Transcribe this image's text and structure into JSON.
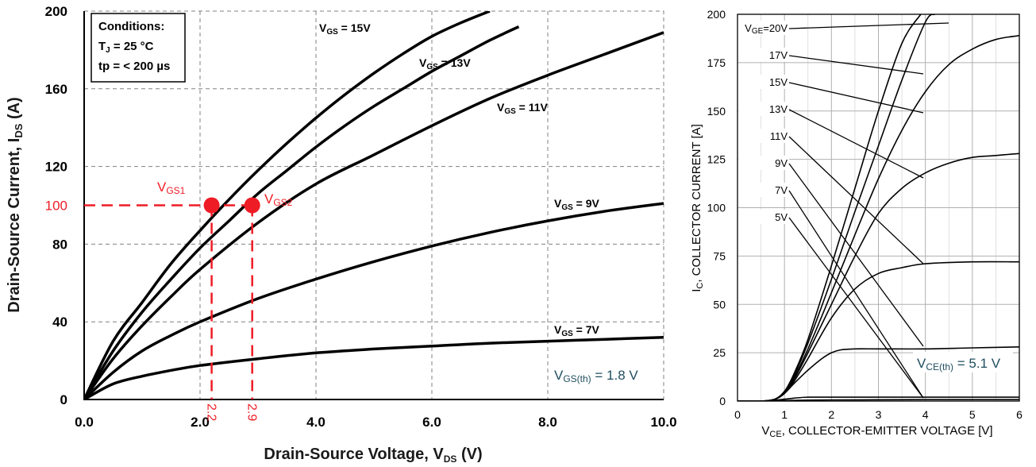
{
  "chart_data": [
    {
      "type": "line",
      "title": "",
      "xlabel_main": "Drain-Source Voltage, V",
      "xlabel_sub": "DS",
      "xlabel_unit": " (V)",
      "ylabel_main": "Drain-Source Current, I",
      "ylabel_sub": "DS",
      "ylabel_unit": " (A)",
      "xlim": [
        0,
        10
      ],
      "ylim": [
        0,
        200
      ],
      "x_ticks": [
        0,
        2,
        4,
        6,
        8,
        10
      ],
      "x_tick_labels": [
        "0.0",
        "2.0",
        "4.0",
        "6.0",
        "8.0",
        "10.0"
      ],
      "y_ticks": [
        0,
        40,
        80,
        120,
        160,
        200
      ],
      "y_tick_labels": [
        "0",
        "40",
        "80",
        "120",
        "160",
        "200"
      ],
      "conditions": {
        "title": "Conditions:",
        "line1_main": "T",
        "line1_sub": "J",
        "line1_rest": " = 25 °C",
        "line2": "tp = < 200 µs"
      },
      "series": [
        {
          "name": "VGS = 15V",
          "label_main": "V",
          "label_sub": "GS",
          "label_rest": " = 15V",
          "x": [
            0,
            0.5,
            1,
            1.5,
            2,
            2.5,
            3,
            3.5,
            4,
            4.5,
            5,
            5.5,
            6,
            6.5,
            7
          ],
          "y": [
            0,
            30,
            50,
            70,
            87,
            103,
            118,
            132,
            145,
            157,
            168,
            178,
            187,
            194,
            200
          ]
        },
        {
          "name": "VGS = 13V",
          "label_main": "V",
          "label_sub": "GS",
          "label_rest": " = 13V",
          "x": [
            0,
            0.5,
            1,
            1.5,
            2,
            2.5,
            3,
            3.5,
            4,
            4.5,
            5,
            5.5,
            6,
            6.5,
            7,
            7.5
          ],
          "y": [
            0,
            25,
            45,
            62,
            78,
            92,
            106,
            118,
            130,
            141,
            151,
            160,
            169,
            177,
            185,
            192
          ]
        },
        {
          "name": "VGS = 11V",
          "label_main": "V",
          "label_sub": "GS",
          "label_rest": " = 11V",
          "x": [
            0,
            0.5,
            1,
            1.5,
            2,
            3,
            4,
            5,
            6,
            7,
            8,
            9,
            10
          ],
          "y": [
            0,
            21,
            38,
            53,
            67,
            91,
            111,
            126,
            141,
            155,
            167,
            178,
            189
          ]
        },
        {
          "name": "VGS = 9V",
          "label_main": "V",
          "label_sub": "GS",
          "label_rest": " = 9V",
          "x": [
            0,
            0.5,
            1,
            1.5,
            2,
            3,
            4,
            5,
            6,
            7,
            8,
            9,
            10
          ],
          "y": [
            0,
            14,
            25,
            33,
            40,
            52,
            62,
            71,
            79,
            86,
            92,
            97,
            101
          ]
        },
        {
          "name": "VGS = 7V",
          "label_main": "V",
          "label_sub": "GS",
          "label_rest": " = 7V",
          "x": [
            0,
            0.5,
            1,
            1.5,
            2,
            3,
            4,
            5,
            6,
            7,
            8,
            9,
            10
          ],
          "y": [
            0,
            8,
            12,
            15,
            17.5,
            21,
            24,
            26,
            27.5,
            29,
            30,
            31,
            32
          ]
        }
      ],
      "markers": [
        {
          "label_main": "V",
          "label_sub": "GS1",
          "x": 2.2,
          "y": 100,
          "tick_label": "2.2"
        },
        {
          "label_main": "V",
          "label_sub": "GS2",
          "x": 2.9,
          "y": 100,
          "tick_label": "2.9"
        }
      ],
      "marker_y_label": "100",
      "threshold_main": "V",
      "threshold_sub": "GS(th)",
      "threshold_rest": " = 1.8 V",
      "colors": {
        "curve": "#000000",
        "marker": "#ee1c25",
        "annotation": "#1f4e5f",
        "grid": "#808080"
      }
    },
    {
      "type": "line",
      "title": "",
      "xlabel_main": "V",
      "xlabel_sub": "CE",
      "xlabel_rest": ", COLLECTOR-EMITTER VOLTAGE [V]",
      "ylabel_main": "I",
      "ylabel_sub": "C",
      "ylabel_rest": ", COLLECTOR CURRENT [A]",
      "xlim": [
        0,
        6
      ],
      "ylim": [
        0,
        200
      ],
      "x_ticks": [
        0,
        1,
        2,
        3,
        4,
        5,
        6
      ],
      "x_tick_labels": [
        "0",
        "1",
        "2",
        "3",
        "4",
        "5",
        "6"
      ],
      "y_ticks": [
        0,
        25,
        50,
        75,
        100,
        125,
        150,
        175,
        200
      ],
      "y_tick_labels": [
        "0",
        "25",
        "50",
        "75",
        "100",
        "125",
        "150",
        "175",
        "200"
      ],
      "series": [
        {
          "name": "VGE=20V",
          "label": "V",
          "label_sub": "GE",
          "label_rest": "=20V",
          "x": [
            0,
            0.5,
            0.8,
            1,
            1.2,
            1.5,
            2,
            2.5,
            3,
            3.5,
            3.9
          ],
          "y": [
            0,
            0,
            1,
            5,
            14,
            32,
            70,
            110,
            150,
            185,
            200
          ]
        },
        {
          "name": "17V",
          "label": "17V",
          "x": [
            0,
            0.5,
            0.8,
            1,
            1.2,
            1.5,
            2,
            2.5,
            3,
            3.5,
            4,
            4.2
          ],
          "y": [
            0,
            0,
            1,
            5,
            13,
            30,
            63,
            98,
            132,
            166,
            196,
            200
          ]
        },
        {
          "name": "15V",
          "label": "15V",
          "x": [
            0,
            0.5,
            0.8,
            1,
            1.2,
            1.5,
            2,
            2.5,
            3,
            3.5,
            4,
            4.5,
            5,
            5.5,
            6
          ],
          "y": [
            0,
            0,
            1,
            5,
            12,
            27,
            56,
            86,
            115,
            140,
            160,
            174,
            182,
            187,
            189
          ]
        },
        {
          "name": "13V",
          "label": "13V",
          "x": [
            0,
            0.5,
            0.8,
            1,
            1.2,
            1.5,
            2,
            2.5,
            3,
            3.5,
            4,
            4.5,
            5,
            5.5,
            6
          ],
          "y": [
            0,
            0,
            1,
            4,
            11,
            25,
            50,
            75,
            97,
            110,
            118,
            123,
            126,
            127,
            128
          ]
        },
        {
          "name": "11V",
          "label": "11V",
          "x": [
            0,
            0.5,
            0.8,
            1,
            1.2,
            1.5,
            2,
            2.5,
            3,
            3.5,
            4,
            5,
            6
          ],
          "y": [
            0,
            0,
            1,
            4,
            10,
            22,
            43,
            58,
            66,
            69,
            71,
            72,
            72
          ]
        },
        {
          "name": "9V",
          "label": "9V",
          "x": [
            0,
            0.5,
            0.8,
            1,
            1.2,
            1.5,
            1.8,
            2,
            2.2,
            2.5,
            3,
            4,
            5,
            6
          ],
          "y": [
            0,
            0,
            1,
            4,
            9,
            16,
            22,
            25,
            26.5,
            27,
            27,
            27,
            27.5,
            28
          ]
        },
        {
          "name": "7V",
          "label": "7V",
          "x": [
            0,
            0.5,
            0.8,
            1,
            1.2,
            1.5,
            2,
            3,
            4,
            5,
            6
          ],
          "y": [
            0,
            0,
            0.5,
            1,
            1.5,
            2,
            2,
            2,
            2,
            2,
            2
          ]
        },
        {
          "name": "5V",
          "label": "5V",
          "x": [
            0,
            0.5,
            1,
            1.5,
            2,
            3,
            4,
            5,
            6
          ],
          "y": [
            0,
            0,
            0.3,
            0.5,
            0.6,
            0.7,
            0.8,
            0.8,
            0.8
          ]
        }
      ],
      "threshold_main": "V",
      "threshold_sub": "CE(th)",
      "threshold_rest": " = 5.1 V",
      "colors": {
        "curve": "#000000",
        "annotation": "#1f4e5f",
        "grid": "#b0b0b0"
      }
    }
  ]
}
